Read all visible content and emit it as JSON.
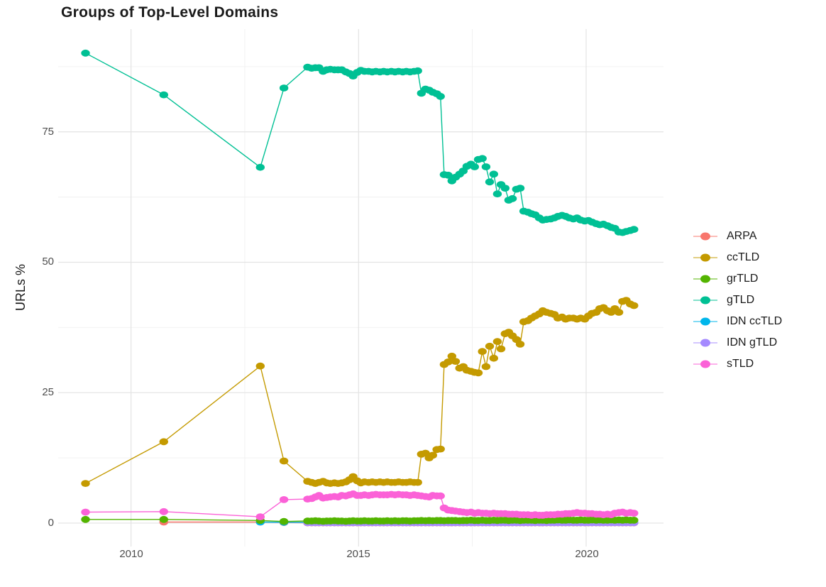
{
  "chart_data": {
    "type": "line",
    "title": "Groups of Top-Level Domains",
    "xlabel": "",
    "ylabel": "URLs %",
    "grid": "on",
    "legend_position": "right",
    "background": "#ffffff",
    "grid_major_color": "#e3e3e3",
    "grid_minor_color": "#f0f0f0",
    "xlim": [
      2008.4,
      2021.7
    ],
    "ylim": [
      -4.5,
      94.7
    ],
    "x_tick_labels": [
      "2010",
      "2015",
      "2020"
    ],
    "y_tick_labels": [
      "0",
      "25",
      "50",
      "75"
    ],
    "x_ticks": [
      2010,
      2015,
      2020
    ],
    "y_ticks": [
      0,
      25,
      50,
      75
    ],
    "x_minor_ticks": [
      2012.5,
      2017.5
    ],
    "y_minor_ticks": [
      12.5,
      37.5,
      62.5,
      87.5
    ],
    "draw_order": [
      "ARPA",
      "IDN ccTLD",
      "IDN gTLD",
      "ccTLD",
      "gTLD",
      "grTLD",
      "sTLD"
    ],
    "x": [
      2009,
      2010.72,
      2012.84,
      2013.36,
      2013.88,
      2013.97,
      2014.05,
      2014.13,
      2014.22,
      2014.3,
      2014.38,
      2014.47,
      2014.55,
      2014.63,
      2014.72,
      2014.8,
      2014.88,
      2014.97,
      2015.05,
      2015.13,
      2015.22,
      2015.3,
      2015.38,
      2015.47,
      2015.55,
      2015.63,
      2015.72,
      2015.8,
      2015.88,
      2015.97,
      2016.05,
      2016.13,
      2016.22,
      2016.3,
      2016.38,
      2016.47,
      2016.55,
      2016.63,
      2016.72,
      2016.8,
      2016.88,
      2016.97,
      2017.05,
      2017.13,
      2017.22,
      2017.3,
      2017.38,
      2017.47,
      2017.55,
      2017.63,
      2017.72,
      2017.8,
      2017.88,
      2017.97,
      2018.05,
      2018.13,
      2018.22,
      2018.3,
      2018.38,
      2018.47,
      2018.55,
      2018.63,
      2018.72,
      2018.8,
      2018.88,
      2018.97,
      2019.05,
      2019.13,
      2019.22,
      2019.3,
      2019.38,
      2019.47,
      2019.55,
      2019.63,
      2019.72,
      2019.8,
      2019.88,
      2019.97,
      2020.05,
      2020.13,
      2020.22,
      2020.3,
      2020.38,
      2020.47,
      2020.55,
      2020.63,
      2020.72,
      2020.8,
      2020.88,
      2020.97,
      2021.05
    ],
    "series": [
      {
        "name": "ARPA",
        "color": "#F8766D",
        "values": [
          null,
          0.2,
          0.2,
          0.1,
          0.05,
          0.05,
          0.05,
          0.05,
          0.05,
          0.05,
          0.05,
          0.05,
          0.05,
          0.05,
          0.05,
          0.05,
          0.05,
          0.05,
          0.05,
          0.05,
          0.05,
          0.05,
          0.05,
          0.05,
          0.05,
          0.05,
          0.05,
          0.05,
          0.05,
          0.05,
          0.05,
          0.05,
          0.05,
          0.05,
          0.05,
          0.05,
          0.05,
          0.05,
          0.05,
          0.05,
          0.05,
          0.05,
          0.05,
          0.05,
          0.05,
          0.05,
          0.05,
          0.05,
          0.05,
          0.05,
          0.05,
          0.05,
          0.05,
          0.05,
          0.05,
          0.05,
          0.05,
          0.05,
          0.05,
          0.05,
          0.05,
          0.05,
          0.05,
          0.05,
          0.05,
          0.05,
          0.05,
          0.05,
          0.05,
          0.05,
          0.05,
          0.05,
          0.05,
          0.05,
          0.05,
          0.05,
          0.05,
          0.05,
          0.05,
          0.05,
          0.05,
          0.05,
          0.05,
          0.05,
          0.05,
          0.05,
          0.05,
          0.05,
          0.05,
          0.05,
          0.05
        ]
      },
      {
        "name": "ccTLD",
        "color": "#C49A00",
        "values": [
          7.6,
          15.6,
          30.1,
          11.9,
          8.0,
          7.8,
          7.6,
          7.8,
          8.0,
          7.7,
          7.6,
          7.7,
          7.6,
          7.7,
          7.9,
          8.3,
          8.9,
          8.1,
          7.7,
          7.9,
          7.8,
          7.9,
          7.8,
          7.9,
          7.8,
          7.9,
          7.8,
          7.8,
          7.9,
          7.8,
          7.8,
          7.9,
          7.8,
          7.8,
          13.2,
          13.4,
          12.5,
          13.0,
          14.1,
          14.2,
          30.4,
          30.9,
          32.0,
          31.0,
          29.7,
          30.0,
          29.3,
          29.1,
          28.9,
          28.8,
          32.9,
          30.0,
          33.9,
          31.6,
          34.8,
          33.4,
          36.3,
          36.6,
          35.9,
          35.2,
          34.3,
          38.6,
          38.8,
          39.3,
          39.7,
          40.1,
          40.7,
          40.4,
          40.2,
          40.0,
          39.3,
          39.5,
          39.1,
          39.3,
          39.3,
          39.1,
          39.3,
          39.1,
          39.7,
          40.2,
          40.4,
          41.1,
          41.3,
          40.7,
          40.4,
          41.1,
          40.4,
          42.5,
          42.7,
          42.0,
          41.7
        ]
      },
      {
        "name": "grTLD",
        "color": "#53B400",
        "values": [
          0.7,
          0.7,
          0.5,
          0.3,
          0.4,
          0.4,
          0.45,
          0.4,
          0.35,
          0.4,
          0.4,
          0.45,
          0.4,
          0.4,
          0.35,
          0.4,
          0.45,
          0.4,
          0.4,
          0.45,
          0.4,
          0.4,
          0.45,
          0.4,
          0.4,
          0.45,
          0.4,
          0.45,
          0.4,
          0.45,
          0.45,
          0.4,
          0.45,
          0.45,
          0.5,
          0.45,
          0.5,
          0.45,
          0.5,
          0.5,
          0.45,
          0.5,
          0.5,
          0.5,
          0.45,
          0.5,
          0.5,
          0.55,
          0.5,
          0.5,
          0.55,
          0.5,
          0.5,
          0.55,
          0.5,
          0.55,
          0.55,
          0.5,
          0.55,
          0.55,
          0.5,
          0.55,
          0.55,
          0.55,
          0.5,
          0.55,
          0.55,
          0.5,
          0.55,
          0.55,
          0.6,
          0.55,
          0.55,
          0.6,
          0.55,
          0.55,
          0.6,
          0.55,
          0.55,
          0.6,
          0.55,
          0.6,
          0.55,
          0.55,
          0.6,
          0.55,
          0.6,
          0.55,
          0.6,
          0.55,
          0.55
        ]
      },
      {
        "name": "gTLD",
        "color": "#00C094",
        "values": [
          90.1,
          82.1,
          68.2,
          83.4,
          87.4,
          87.2,
          87.3,
          87.3,
          86.6,
          86.9,
          87.0,
          86.9,
          86.9,
          86.9,
          86.5,
          86.2,
          85.7,
          86.4,
          86.8,
          86.6,
          86.6,
          86.5,
          86.6,
          86.5,
          86.6,
          86.5,
          86.6,
          86.5,
          86.6,
          86.5,
          86.6,
          86.5,
          86.6,
          86.7,
          82.4,
          83.2,
          83.0,
          82.6,
          82.3,
          81.8,
          66.8,
          66.7,
          65.6,
          66.3,
          66.9,
          67.5,
          68.4,
          68.8,
          68.3,
          69.7,
          69.9,
          68.3,
          65.4,
          66.9,
          63.1,
          64.9,
          64.2,
          61.9,
          62.2,
          64.0,
          64.2,
          59.8,
          59.6,
          59.3,
          59.1,
          58.5,
          58.1,
          58.2,
          58.3,
          58.5,
          58.8,
          59.0,
          58.8,
          58.5,
          58.3,
          58.5,
          58.1,
          57.9,
          58.0,
          57.7,
          57.4,
          57.2,
          57.3,
          57.0,
          56.7,
          56.5,
          55.8,
          55.7,
          55.9,
          56.1,
          56.3
        ]
      },
      {
        "name": "IDN ccTLD",
        "color": "#00B6EB",
        "values": [
          null,
          null,
          0.2,
          0.15,
          0.12,
          0.12,
          0.12,
          0.12,
          0.12,
          0.12,
          0.12,
          0.12,
          0.12,
          0.12,
          0.12,
          0.12,
          0.12,
          0.12,
          0.12,
          0.12,
          0.12,
          0.12,
          0.12,
          0.12,
          0.12,
          0.12,
          0.12,
          0.12,
          0.12,
          0.12,
          0.12,
          0.12,
          0.12,
          0.12,
          0.12,
          0.12,
          0.12,
          0.12,
          0.12,
          0.12,
          0.12,
          0.12,
          0.12,
          0.12,
          0.12,
          0.12,
          0.12,
          0.12,
          0.12,
          0.12,
          0.12,
          0.12,
          0.12,
          0.12,
          0.12,
          0.12,
          0.12,
          0.12,
          0.12,
          0.12,
          0.12,
          0.12,
          0.12,
          0.12,
          0.12,
          0.12,
          0.12,
          0.12,
          0.12,
          0.12,
          0.12,
          0.12,
          0.12,
          0.12,
          0.12,
          0.12,
          0.12,
          0.12,
          0.12,
          0.12,
          0.12,
          0.12,
          0.12,
          0.12,
          0.12,
          0.12,
          0.12,
          0.12,
          0.12,
          0.12,
          0.12
        ]
      },
      {
        "name": "IDN gTLD",
        "color": "#A58AFF",
        "values": [
          null,
          null,
          null,
          null,
          0.07,
          0.07,
          0.07,
          0.07,
          0.07,
          0.07,
          0.07,
          0.07,
          0.07,
          0.07,
          0.07,
          0.07,
          0.07,
          0.07,
          0.07,
          0.07,
          0.07,
          0.07,
          0.07,
          0.07,
          0.07,
          0.07,
          0.07,
          0.07,
          0.07,
          0.07,
          0.07,
          0.07,
          0.07,
          0.07,
          0.07,
          0.07,
          0.07,
          0.07,
          0.07,
          0.07,
          0.07,
          0.07,
          0.07,
          0.07,
          0.07,
          0.07,
          0.07,
          0.07,
          0.07,
          0.07,
          0.07,
          0.07,
          0.07,
          0.07,
          0.07,
          0.07,
          0.07,
          0.07,
          0.07,
          0.07,
          0.07,
          0.07,
          0.07,
          0.07,
          0.07,
          0.07,
          0.07,
          0.07,
          0.07,
          0.07,
          0.07,
          0.07,
          0.07,
          0.07,
          0.07,
          0.07,
          0.07,
          0.07,
          0.07,
          0.07,
          0.07,
          0.07,
          0.07,
          0.07,
          0.07,
          0.07,
          0.07,
          0.07,
          0.07,
          0.07,
          0.07
        ]
      },
      {
        "name": "sTLD",
        "color": "#FB61D7",
        "values": [
          2.1,
          2.2,
          1.2,
          4.5,
          4.6,
          4.7,
          5.0,
          5.3,
          4.8,
          4.9,
          5.0,
          5.1,
          5.0,
          5.3,
          5.2,
          5.4,
          5.6,
          5.3,
          5.3,
          5.4,
          5.3,
          5.4,
          5.5,
          5.4,
          5.4,
          5.4,
          5.5,
          5.4,
          5.5,
          5.4,
          5.4,
          5.3,
          5.4,
          5.3,
          5.2,
          5.1,
          5.0,
          5.3,
          5.2,
          5.2,
          2.9,
          2.5,
          2.4,
          2.3,
          2.2,
          2.1,
          2.0,
          2.1,
          1.9,
          2.0,
          1.9,
          1.9,
          1.8,
          1.9,
          1.8,
          1.8,
          1.8,
          1.7,
          1.7,
          1.7,
          1.6,
          1.6,
          1.6,
          1.5,
          1.6,
          1.5,
          1.5,
          1.6,
          1.6,
          1.6,
          1.7,
          1.7,
          1.8,
          1.8,
          1.9,
          2.0,
          1.9,
          1.9,
          1.8,
          1.8,
          1.7,
          1.7,
          1.6,
          1.7,
          1.6,
          1.9,
          2.0,
          2.1,
          1.9,
          2.0,
          1.9
        ]
      }
    ]
  }
}
